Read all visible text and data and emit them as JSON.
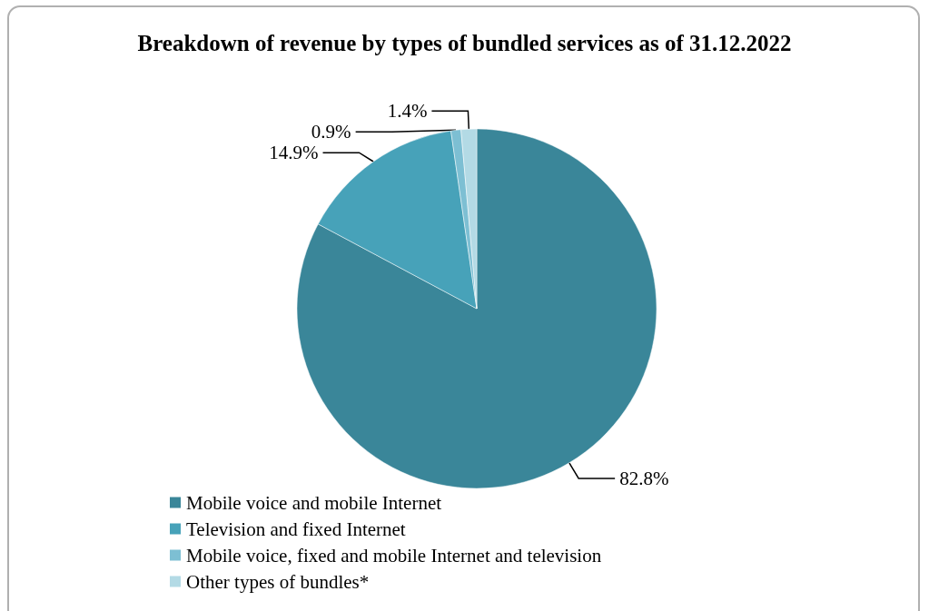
{
  "chart_data": {
    "type": "pie",
    "title": "Breakdown of revenue by types of bundled services as of 31.12.2022",
    "categories": [
      "Mobile voice and mobile Internet",
      "Television and fixed Internet",
      "Mobile voice, fixed and mobile Internet and television",
      "Other types of bundles*"
    ],
    "values": [
      82.8,
      14.9,
      0.9,
      1.4
    ],
    "colors": [
      "#3a8699",
      "#47a2b9",
      "#7dbfd3",
      "#b3dae5"
    ],
    "value_labels": [
      "82.8%",
      "14.9%",
      "0.9%",
      "1.4%"
    ],
    "legend": "bottom left"
  }
}
